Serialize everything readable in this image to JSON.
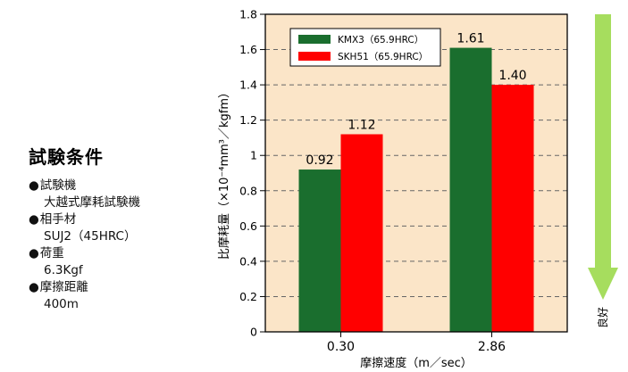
{
  "conditions": {
    "title": "試験条件",
    "items": [
      {
        "label": "試験機",
        "value": "大越式摩耗試験機"
      },
      {
        "label": "相手材",
        "value": "SUJ2（45HRC）"
      },
      {
        "label": "荷重",
        "value": "6.3Kgf"
      },
      {
        "label": "摩擦距離",
        "value": "400m"
      }
    ]
  },
  "chart_data": {
    "type": "bar",
    "categories": [
      "0.30",
      "2.86"
    ],
    "series": [
      {
        "name": "KMX3（65.9HRC）",
        "values": [
          0.92,
          1.61
        ],
        "value_labels": [
          "0.92",
          "1.61"
        ],
        "color": "#1a6e2e"
      },
      {
        "name": "SKH51（65.9HRC）",
        "values": [
          1.12,
          1.4
        ],
        "value_labels": [
          "1.12",
          "1.40"
        ],
        "color": "#ff0000"
      }
    ],
    "xlabel": "摩擦速度（m／sec）",
    "ylabel": "比摩耗量（×10⁻⁴mm³／kgfm）",
    "ylim": [
      0,
      1.8
    ],
    "yticks": [
      "0",
      "0.2",
      "0.4",
      "0.6",
      "0.8",
      "1",
      "1.2",
      "1.4",
      "1.6",
      "1.8"
    ],
    "grid": true,
    "legend_position": "top-left",
    "plot_background": "#fbe5c8",
    "arrow_label": "良好",
    "arrow_color": "#a6dd5e"
  }
}
